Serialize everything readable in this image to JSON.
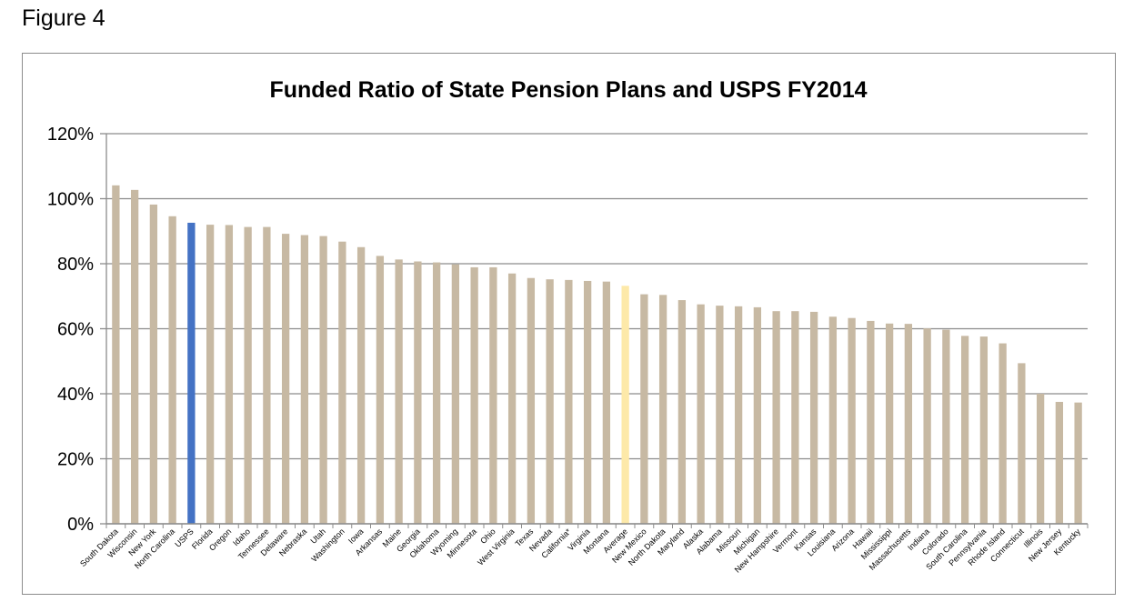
{
  "figure_label": "Figure 4",
  "chart_data": {
    "type": "bar",
    "title": "Funded Ratio of State Pension Plans and USPS FY2014",
    "ylim": [
      0,
      120
    ],
    "yticks": [
      0,
      20,
      40,
      60,
      80,
      100,
      120
    ],
    "ytick_format": "%",
    "grid": "horizontal",
    "colors": {
      "default": "#c7b9a3",
      "USPS": "#4472c4",
      "Average": "#fde9a9",
      "grid": "#8c8c8c",
      "axis": "#8c8c8c"
    },
    "categories": [
      "South Dakota",
      "Wisconsin",
      "New York",
      "North Carolina",
      "USPS",
      "Florida",
      "Oregon",
      "Idaho",
      "Tennessee",
      "Delaware",
      "Nebraska",
      "Utah",
      "Washington",
      "Iowa",
      "Arkansas",
      "Maine",
      "Georgia",
      "Oklahoma",
      "Wyoming",
      "Minnesota",
      "Ohio",
      "West Virginia",
      "Texas",
      "Nevada",
      "California*",
      "Virginia",
      "Montana",
      "Average",
      "New Mexico",
      "North Dakota",
      "Maryland",
      "Alaska",
      "Alabama",
      "Missouri",
      "Michigan",
      "New Hampshire",
      "Vermont",
      "Kansas",
      "Louisiana",
      "Arizona",
      "Hawaii",
      "Mississippi",
      "Massachusetts",
      "Indiana",
      "Colorado",
      "South Carolina",
      "Pennsylvania",
      "Rhode Island",
      "Connecticut",
      "Illinois",
      "New Jersey",
      "Kentucky"
    ],
    "values": [
      104.1,
      102.7,
      98.2,
      94.6,
      92.6,
      92.0,
      91.9,
      91.3,
      91.3,
      89.2,
      88.8,
      88.5,
      86.8,
      85.1,
      82.4,
      81.3,
      80.7,
      80.4,
      79.8,
      78.9,
      78.9,
      77.0,
      75.6,
      75.2,
      75.0,
      74.7,
      74.5,
      73.2,
      70.6,
      70.4,
      68.8,
      67.5,
      67.1,
      66.9,
      66.6,
      65.4,
      65.4,
      65.2,
      63.7,
      63.3,
      62.4,
      61.6,
      61.5,
      60.1,
      59.7,
      57.8,
      57.6,
      55.5,
      49.4,
      40.0,
      37.5,
      37.3
    ]
  }
}
